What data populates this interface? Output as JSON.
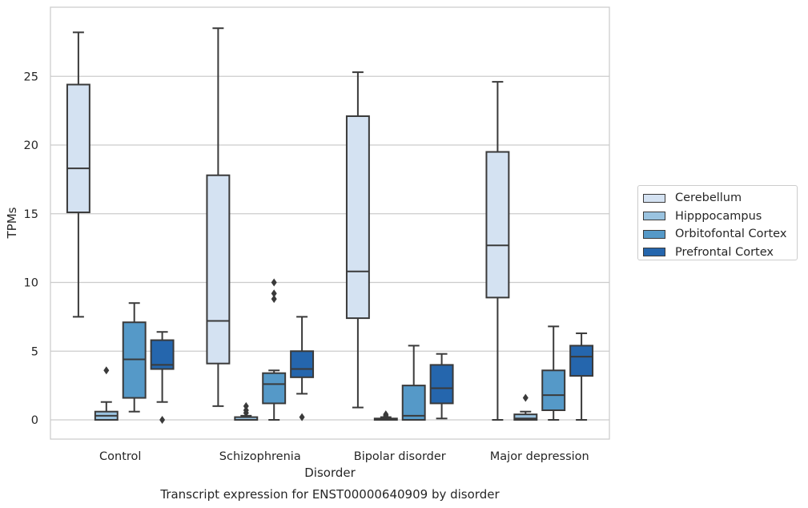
{
  "caption": "Transcript expression for ENST00000640909 by disorder",
  "chart_data": {
    "type": "box",
    "xlabel": "Disorder",
    "ylabel": "TPMs",
    "ylim": [
      -1.3,
      30
    ],
    "yticks": [
      0,
      5,
      10,
      15,
      20,
      25
    ],
    "categories": [
      "Control",
      "Schizophrenia",
      "Bipolar disorder",
      "Major depression"
    ],
    "grid": "horizontal",
    "legend_position": "right",
    "series": [
      {
        "name": "Cerebellum",
        "color": "#d4e2f2",
        "boxes": [
          {
            "whislo": 7.5,
            "q1": 15.1,
            "med": 18.3,
            "q3": 24.4,
            "whishi": 28.2,
            "fliers": []
          },
          {
            "whislo": 1.0,
            "q1": 4.1,
            "med": 7.2,
            "q3": 17.8,
            "whishi": 28.5,
            "fliers": []
          },
          {
            "whislo": 0.9,
            "q1": 7.4,
            "med": 10.8,
            "q3": 22.1,
            "whishi": 25.3,
            "fliers": []
          },
          {
            "whislo": 0.0,
            "q1": 8.9,
            "med": 12.7,
            "q3": 19.5,
            "whishi": 24.6,
            "fliers": []
          }
        ]
      },
      {
        "name": "Hipppocampus",
        "color": "#9ac3e0",
        "boxes": [
          {
            "whislo": 0.0,
            "q1": 0.0,
            "med": 0.3,
            "q3": 0.6,
            "whishi": 1.3,
            "fliers": [
              3.6
            ]
          },
          {
            "whislo": 0.0,
            "q1": 0.0,
            "med": 0.0,
            "q3": 0.2,
            "whishi": 0.3,
            "fliers": [
              0.5,
              0.7,
              1.0
            ]
          },
          {
            "whislo": 0.0,
            "q1": 0.0,
            "med": 0.0,
            "q3": 0.1,
            "whishi": 0.2,
            "fliers": [
              0.3,
              0.4
            ]
          },
          {
            "whislo": 0.0,
            "q1": 0.0,
            "med": 0.1,
            "q3": 0.4,
            "whishi": 0.6,
            "fliers": [
              1.6
            ]
          }
        ]
      },
      {
        "name": "Orbitofontal Cortex",
        "color": "#5599c8",
        "boxes": [
          {
            "whislo": 0.6,
            "q1": 1.6,
            "med": 4.4,
            "q3": 7.1,
            "whishi": 8.5,
            "fliers": []
          },
          {
            "whislo": 0.0,
            "q1": 1.2,
            "med": 2.6,
            "q3": 3.4,
            "whishi": 3.6,
            "fliers": [
              8.8,
              9.2,
              10.0
            ]
          },
          {
            "whislo": 0.0,
            "q1": 0.0,
            "med": 0.3,
            "q3": 2.5,
            "whishi": 5.4,
            "fliers": []
          },
          {
            "whislo": 0.0,
            "q1": 0.7,
            "med": 1.8,
            "q3": 3.6,
            "whishi": 6.8,
            "fliers": []
          }
        ]
      },
      {
        "name": "Prefrontal Cortex",
        "color": "#2566ad",
        "boxes": [
          {
            "whislo": 1.3,
            "q1": 3.7,
            "med": 4.0,
            "q3": 5.8,
            "whishi": 6.4,
            "fliers": [
              0.0
            ]
          },
          {
            "whislo": 1.9,
            "q1": 3.1,
            "med": 3.7,
            "q3": 5.0,
            "whishi": 7.5,
            "fliers": [
              0.2
            ]
          },
          {
            "whislo": 0.1,
            "q1": 1.2,
            "med": 2.3,
            "q3": 4.0,
            "whishi": 4.8,
            "fliers": []
          },
          {
            "whislo": 0.0,
            "q1": 3.2,
            "med": 4.6,
            "q3": 5.4,
            "whishi": 6.3,
            "fliers": []
          }
        ]
      }
    ]
  }
}
